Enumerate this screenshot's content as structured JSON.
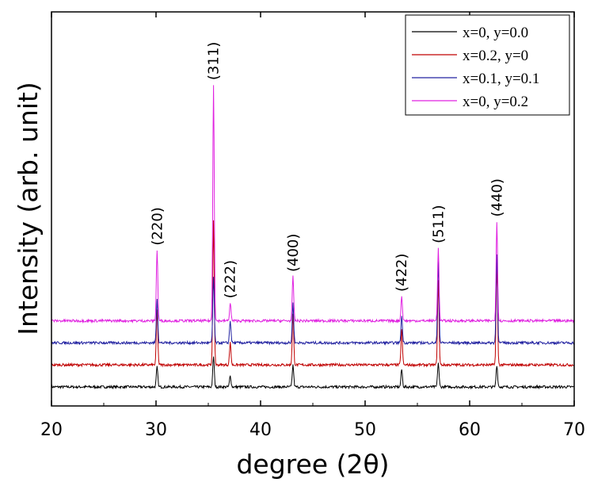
{
  "chart_data": {
    "type": "line",
    "xlabel": "degree (2θ)",
    "ylabel": "Intensity (arb. unit)",
    "xlim": [
      20,
      70
    ],
    "xticks": [
      20,
      30,
      40,
      50,
      60,
      70
    ],
    "y_ticks_shown": false,
    "legend_position": "top-right",
    "series": [
      {
        "name": "x=0, y=0.0",
        "color": "#000000",
        "baseline": 0.0,
        "peaks": [
          [
            30.1,
            0.09
          ],
          [
            35.5,
            0.14
          ],
          [
            37.1,
            0.05
          ],
          [
            43.1,
            0.1
          ],
          [
            53.5,
            0.08
          ],
          [
            57.0,
            0.11
          ],
          [
            62.6,
            0.1
          ]
        ]
      },
      {
        "name": "x=0.2, y=0",
        "color": "#c00000",
        "baseline": 0.1,
        "peaks": [
          [
            30.1,
            0.25
          ],
          [
            35.5,
            0.65
          ],
          [
            37.1,
            0.1
          ],
          [
            43.1,
            0.23
          ],
          [
            53.5,
            0.16
          ],
          [
            57.0,
            0.38
          ],
          [
            62.6,
            0.45
          ]
        ]
      },
      {
        "name": "x=0.1, y=0.1",
        "color": "#2020a0",
        "baseline": 0.2,
        "peaks": [
          [
            30.1,
            0.2
          ],
          [
            35.5,
            0.3
          ],
          [
            37.1,
            0.1
          ],
          [
            43.1,
            0.18
          ],
          [
            53.5,
            0.12
          ],
          [
            57.0,
            0.37
          ],
          [
            62.6,
            0.4
          ]
        ]
      },
      {
        "name": "x=0, y=0.2",
        "color": "#e020e0",
        "baseline": 0.3,
        "peaks": [
          [
            30.1,
            0.32
          ],
          [
            35.5,
            1.07
          ],
          [
            37.1,
            0.08
          ],
          [
            43.1,
            0.2
          ],
          [
            53.5,
            0.11
          ],
          [
            57.0,
            0.33
          ],
          [
            62.6,
            0.45
          ]
        ]
      }
    ],
    "peak_labels": [
      {
        "text": "(220)",
        "x": 30.1
      },
      {
        "text": "(311)",
        "x": 35.5
      },
      {
        "text": "(222)",
        "x": 37.1
      },
      {
        "text": "(400)",
        "x": 43.1
      },
      {
        "text": "(422)",
        "x": 53.5
      },
      {
        "text": "(511)",
        "x": 57.0
      },
      {
        "text": "(440)",
        "x": 62.6
      }
    ]
  }
}
